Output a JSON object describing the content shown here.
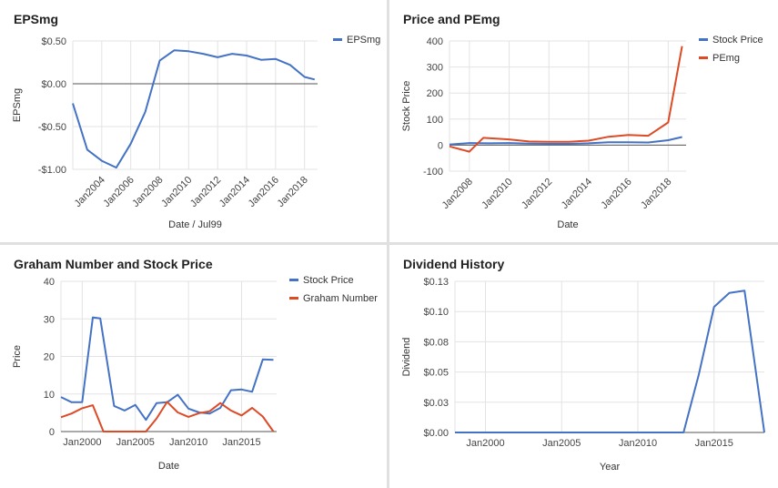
{
  "colors": {
    "blue": "#4472c4",
    "red": "#dc4a26",
    "grid": "#e3e3e3",
    "axis": "#555555",
    "text": "#444444"
  },
  "chart_data": [
    {
      "type": "line",
      "title": "EPSmg",
      "xlabel": "Date / Jul99",
      "ylabel": "EPSmg",
      "xlim": [
        2002.0,
        2018.9
      ],
      "ylim": [
        -1.0,
        0.5
      ],
      "xticks": [
        2004,
        2006,
        2008,
        2010,
        2012,
        2014,
        2016,
        2018
      ],
      "xtick_labels": [
        "Jan2004",
        "Jan2006",
        "Jan2008",
        "Jan2010",
        "Jan2012",
        "Jan2014",
        "Jan2016",
        "Jan2018"
      ],
      "xtick_rotate": true,
      "yticks": [
        -1.0,
        -0.5,
        0.0,
        0.5
      ],
      "ytick_labels": [
        "-$1.00",
        "-$0.50",
        "$0.00",
        "$0.50"
      ],
      "zero_line": true,
      "grid": true,
      "legend": "top-right",
      "series": [
        {
          "name": "EPSmg",
          "color": "#4472c4",
          "x": [
            2002.0,
            2003.0,
            2004.0,
            2005.0,
            2006.0,
            2007.0,
            2008.0,
            2009.0,
            2010.0,
            2011.0,
            2012.0,
            2013.0,
            2014.0,
            2015.0,
            2016.0,
            2017.0,
            2018.0,
            2018.7
          ],
          "y": [
            -0.23,
            -0.77,
            -0.9,
            -0.98,
            -0.7,
            -0.33,
            0.27,
            0.39,
            0.38,
            0.35,
            0.31,
            0.35,
            0.33,
            0.28,
            0.29,
            0.22,
            0.08,
            0.05
          ]
        }
      ]
    },
    {
      "type": "line",
      "title": "Price and PEmg",
      "xlabel": "Date",
      "ylabel": "Stock Price",
      "xlim": [
        2007.0,
        2018.9
      ],
      "ylim": [
        -100,
        400
      ],
      "xticks": [
        2008,
        2010,
        2012,
        2014,
        2016,
        2018
      ],
      "xtick_labels": [
        "Jan2008",
        "Jan2010",
        "Jan2012",
        "Jan2014",
        "Jan2016",
        "Jan2018"
      ],
      "xtick_rotate": true,
      "yticks": [
        -100,
        0,
        100,
        200,
        300,
        400
      ],
      "ytick_labels": [
        "-100",
        "0",
        "100",
        "200",
        "300",
        "400"
      ],
      "zero_line": true,
      "grid": true,
      "legend": "top-right",
      "series": [
        {
          "name": "Stock Price",
          "color": "#4472c4",
          "x": [
            2007.0,
            2008.0,
            2009.0,
            2010.0,
            2011.0,
            2012.0,
            2013.0,
            2014.0,
            2015.0,
            2016.0,
            2017.0,
            2018.0,
            2018.7
          ],
          "y": [
            2,
            8,
            7,
            8,
            6,
            5,
            5,
            7,
            11,
            11,
            10,
            19,
            31
          ]
        },
        {
          "name": "PEmg",
          "color": "#dc4a26",
          "x": [
            2007.0,
            2008.0,
            2008.7,
            2010.0,
            2011.0,
            2012.0,
            2013.0,
            2014.0,
            2015.0,
            2016.0,
            2017.0,
            2018.0,
            2018.7
          ],
          "y": [
            -5,
            -25,
            28,
            22,
            14,
            13,
            13,
            17,
            32,
            39,
            36,
            87,
            380
          ]
        }
      ]
    },
    {
      "type": "line",
      "title": "Graham Number and Stock Price",
      "xlabel": "Date",
      "ylabel": "Price",
      "xlim": [
        1998.0,
        2018.3
      ],
      "ylim": [
        0,
        40
      ],
      "xticks": [
        2000,
        2005,
        2010,
        2015
      ],
      "xtick_labels": [
        "Jan2000",
        "Jan2005",
        "Jan2010",
        "Jan2015"
      ],
      "xtick_rotate": false,
      "yticks": [
        0,
        10,
        20,
        30,
        40
      ],
      "ytick_labels": [
        "0",
        "10",
        "20",
        "30",
        "40"
      ],
      "grid": true,
      "legend": "top-right",
      "series": [
        {
          "name": "Stock Price",
          "color": "#4472c4",
          "x": [
            1998.0,
            1999.0,
            2000.0,
            2001.0,
            2001.7,
            2003.0,
            2004.0,
            2005.0,
            2006.0,
            2007.0,
            2008.0,
            2009.0,
            2010.0,
            2011.0,
            2012.0,
            2013.0,
            2014.0,
            2015.0,
            2016.0,
            2017.0,
            2018.0
          ],
          "y": [
            9.2,
            7.8,
            7.8,
            30.4,
            30.1,
            6.8,
            5.6,
            7.1,
            3.1,
            7.6,
            7.8,
            9.8,
            6.1,
            5.1,
            4.8,
            6.3,
            11.0,
            11.2,
            10.6,
            19.2,
            19.1
          ]
        },
        {
          "name": "Graham Number",
          "color": "#dc4a26",
          "x": [
            1998.0,
            1999.0,
            2000.0,
            2001.0,
            2002.0,
            2003.0,
            2004.0,
            2005.0,
            2006.0,
            2007.0,
            2008.0,
            2009.0,
            2010.0,
            2011.0,
            2012.0,
            2013.0,
            2014.0,
            2015.0,
            2016.0,
            2017.0,
            2018.0
          ],
          "y": [
            3.8,
            4.8,
            6.2,
            7.0,
            0,
            0,
            0,
            0,
            0,
            3.5,
            7.9,
            5.1,
            3.9,
            4.9,
            5.4,
            7.6,
            5.6,
            4.3,
            6.3,
            4.0,
            0
          ]
        }
      ]
    },
    {
      "type": "line",
      "title": "Dividend History",
      "xlabel": "Year",
      "ylabel": "Dividend",
      "xlim": [
        1998.0,
        2018.3
      ],
      "ylim": [
        0,
        0.13
      ],
      "xticks": [
        2000,
        2005,
        2010,
        2015
      ],
      "xtick_labels": [
        "Jan2000",
        "Jan2005",
        "Jan2010",
        "Jan2015"
      ],
      "xtick_rotate": false,
      "yticks": [
        0,
        0.026,
        0.052,
        0.078,
        0.104,
        0.13
      ],
      "ytick_labels": [
        "$0.00",
        "$0.03",
        "$0.05",
        "$0.08",
        "$0.10",
        "$0.13"
      ],
      "grid": true,
      "legend": "none",
      "series": [
        {
          "name": "",
          "color": "#4472c4",
          "x": [
            1998.0,
            2013.0,
            2014.0,
            2015.0,
            2016.0,
            2017.0,
            2018.3
          ],
          "y": [
            0,
            0,
            0.05,
            0.108,
            0.12,
            0.122,
            0
          ]
        }
      ]
    }
  ]
}
